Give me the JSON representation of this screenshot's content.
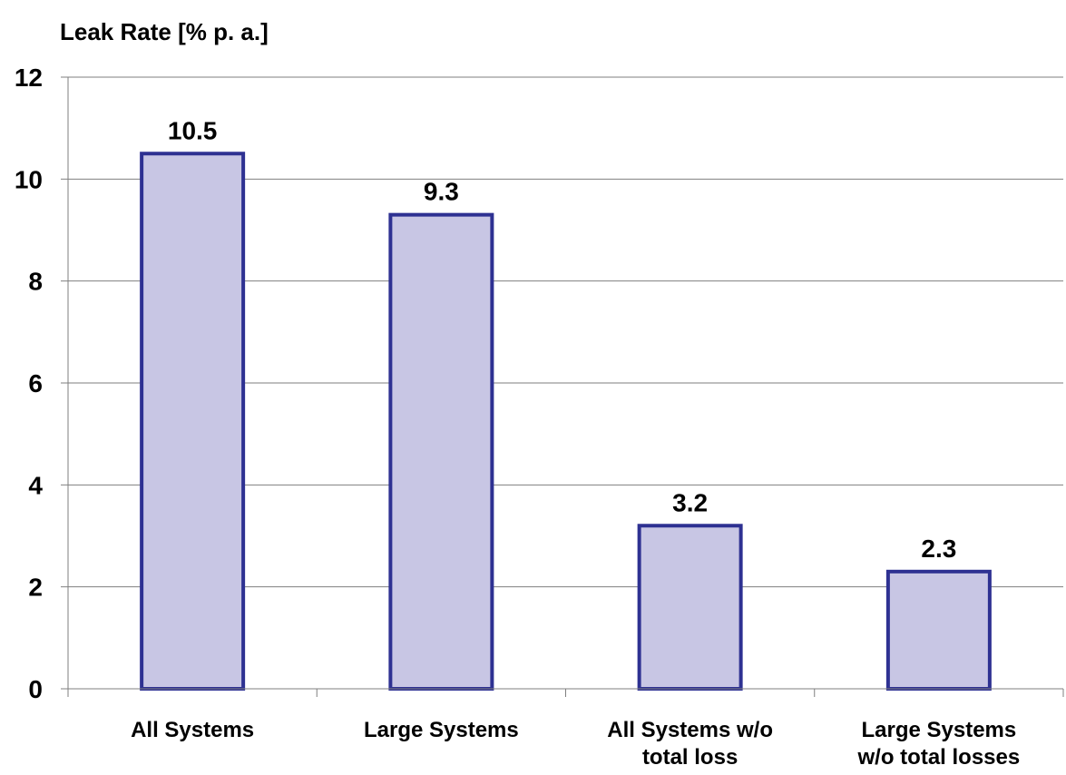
{
  "chart_data": {
    "type": "bar",
    "ylabel": "Leak Rate [% p. a.]",
    "categories": [
      [
        "All Systems"
      ],
      [
        "Large Systems"
      ],
      [
        "All Systems w/o",
        "total loss"
      ],
      [
        "Large Systems",
        "w/o total losses"
      ]
    ],
    "values": [
      10.5,
      9.3,
      3.2,
      2.3
    ],
    "value_labels": [
      "10.5",
      "9.3",
      "3.2",
      "2.3"
    ],
    "ylim": [
      0,
      12
    ],
    "yticks": [
      0,
      2,
      4,
      6,
      8,
      10,
      12
    ],
    "grid": true,
    "legend": "none",
    "colors": {
      "bar_fill": "#c8c6e4",
      "bar_stroke": "#2e3192",
      "grid": "#7f7f7f",
      "axis": "#7f7f7f"
    }
  }
}
